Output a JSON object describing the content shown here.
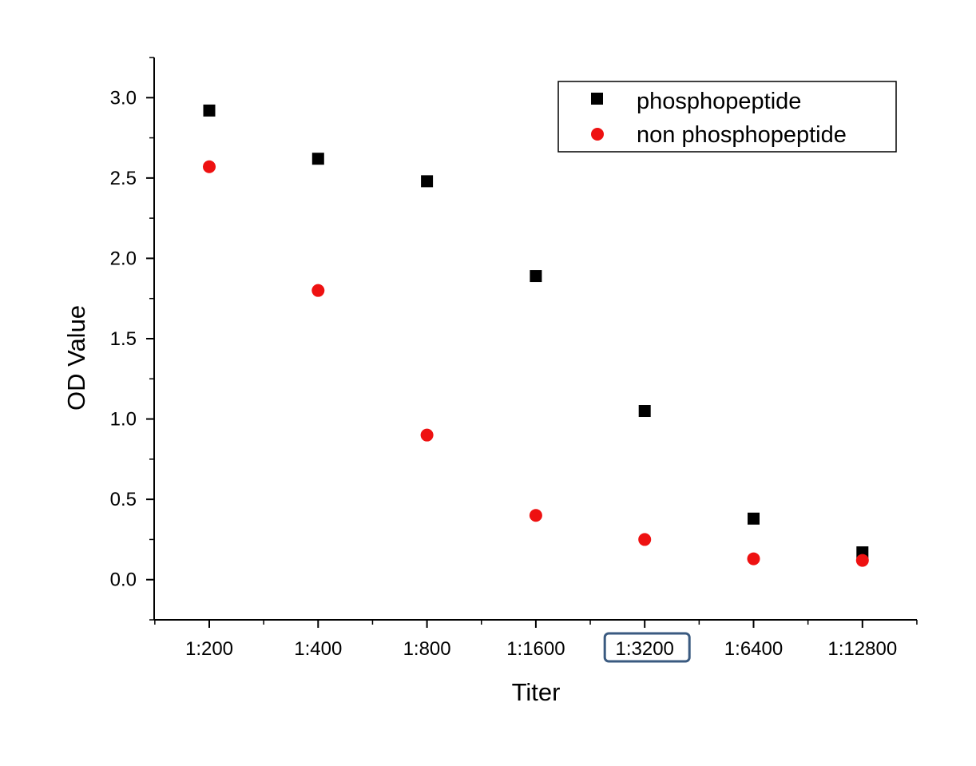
{
  "chart_data": {
    "type": "scatter",
    "categories": [
      "1:200",
      "1:400",
      "1:800",
      "1:1600",
      "1:3200",
      "1:6400",
      "1:12800"
    ],
    "series": [
      {
        "name": "phosphopeptide",
        "marker": "square",
        "color": "#000000",
        "values": [
          2.92,
          2.62,
          2.48,
          1.89,
          1.05,
          0.38,
          0.17
        ]
      },
      {
        "name": "non phosphopeptide",
        "marker": "circle",
        "color": "#ee1111",
        "values": [
          2.57,
          1.8,
          0.9,
          0.4,
          0.25,
          0.13,
          0.12
        ]
      }
    ],
    "xlabel": "Titer",
    "ylabel": "OD Value",
    "ylim": [
      -0.25,
      3.25
    ],
    "yticks": [
      "0.0",
      "0.5",
      "1.0",
      "1.5",
      "2.0",
      "2.5",
      "3.0"
    ],
    "grid": false,
    "legend_position": "top-right",
    "highlighted_category": "1:3200",
    "highlight_color": "#3a5a80"
  }
}
